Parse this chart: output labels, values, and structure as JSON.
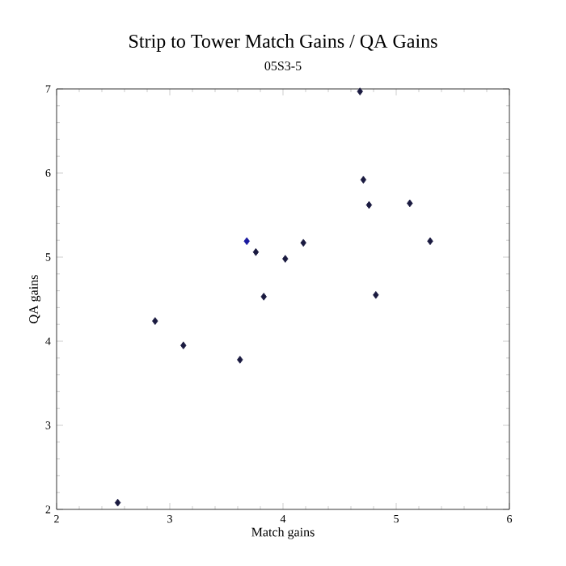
{
  "chart_data": {
    "type": "scatter",
    "title": "Strip to Tower Match Gains / QA Gains",
    "subtitle": "05S3-5",
    "xlabel": "Match gains",
    "ylabel": "QA gains",
    "x": [
      2.54,
      2.87,
      3.12,
      3.62,
      3.68,
      3.76,
      3.83,
      4.02,
      4.18,
      4.68,
      4.71,
      4.76,
      4.82,
      5.12,
      5.3
    ],
    "values": [
      2.08,
      4.24,
      3.95,
      3.78,
      5.19,
      5.06,
      4.53,
      4.98,
      5.17,
      6.97,
      5.92,
      5.62,
      4.55,
      5.64,
      5.19
    ],
    "colors": [
      "#1a1a40",
      "#1a1a40",
      "#1a1a40",
      "#1a1a40",
      "#1a1aa0",
      "#1a1a40",
      "#1a1a40",
      "#1a1a40",
      "#1a1a40",
      "#1a1a40",
      "#1a1a40",
      "#1a1a40",
      "#1a1a40",
      "#1a1a40",
      "#1a1a40"
    ],
    "marker": "diamond",
    "xlim": [
      2,
      6
    ],
    "ylim": [
      2,
      7
    ],
    "xticks": [
      2,
      3,
      4,
      5,
      6
    ],
    "yticks": [
      2,
      3,
      4,
      5,
      6,
      7
    ],
    "grid": false
  }
}
